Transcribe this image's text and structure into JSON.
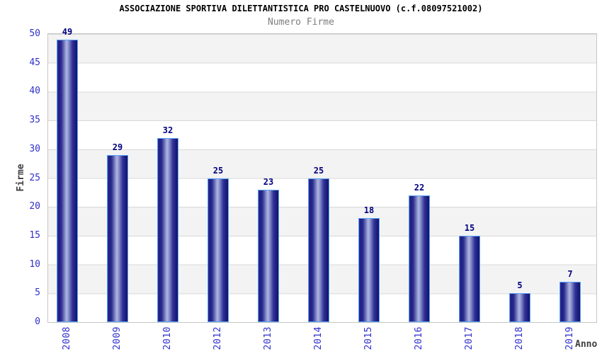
{
  "chart_data": {
    "type": "bar",
    "title": "ASSOCIAZIONE SPORTIVA DILETTANTISTICA PRO CASTELNUOVO (c.f.08097521002)",
    "subtitle": "Numero Firme",
    "xlabel": "Anno",
    "ylabel": "Firme",
    "categories": [
      "2008",
      "2009",
      "2010",
      "2012",
      "2013",
      "2014",
      "2015",
      "2016",
      "2017",
      "2018",
      "2019"
    ],
    "values": [
      49,
      29,
      32,
      25,
      23,
      25,
      18,
      22,
      15,
      5,
      7
    ],
    "ylim": [
      0,
      50
    ],
    "yticks": [
      0,
      5,
      10,
      15,
      20,
      25,
      30,
      35,
      40,
      45,
      50
    ],
    "grid": "horizontal gridlines every 5 units with alternating gray/white bands",
    "legend": "none",
    "bar_value_labels": true,
    "colors": {
      "title_text": "#000000",
      "subtitle_text": "#7d7d7d",
      "tick_text": "#3030cc",
      "value_text": "#000080",
      "axis_title_text": "#404040",
      "bar_dark": "#1b1b78",
      "bar_light": "#b0b6e0",
      "bar_border": "#58a6f8",
      "band_gray": "#f3f3f3",
      "grid_line": "#d8d8d8",
      "plot_border": "#c6c6c6",
      "background": "#ffffff"
    }
  }
}
